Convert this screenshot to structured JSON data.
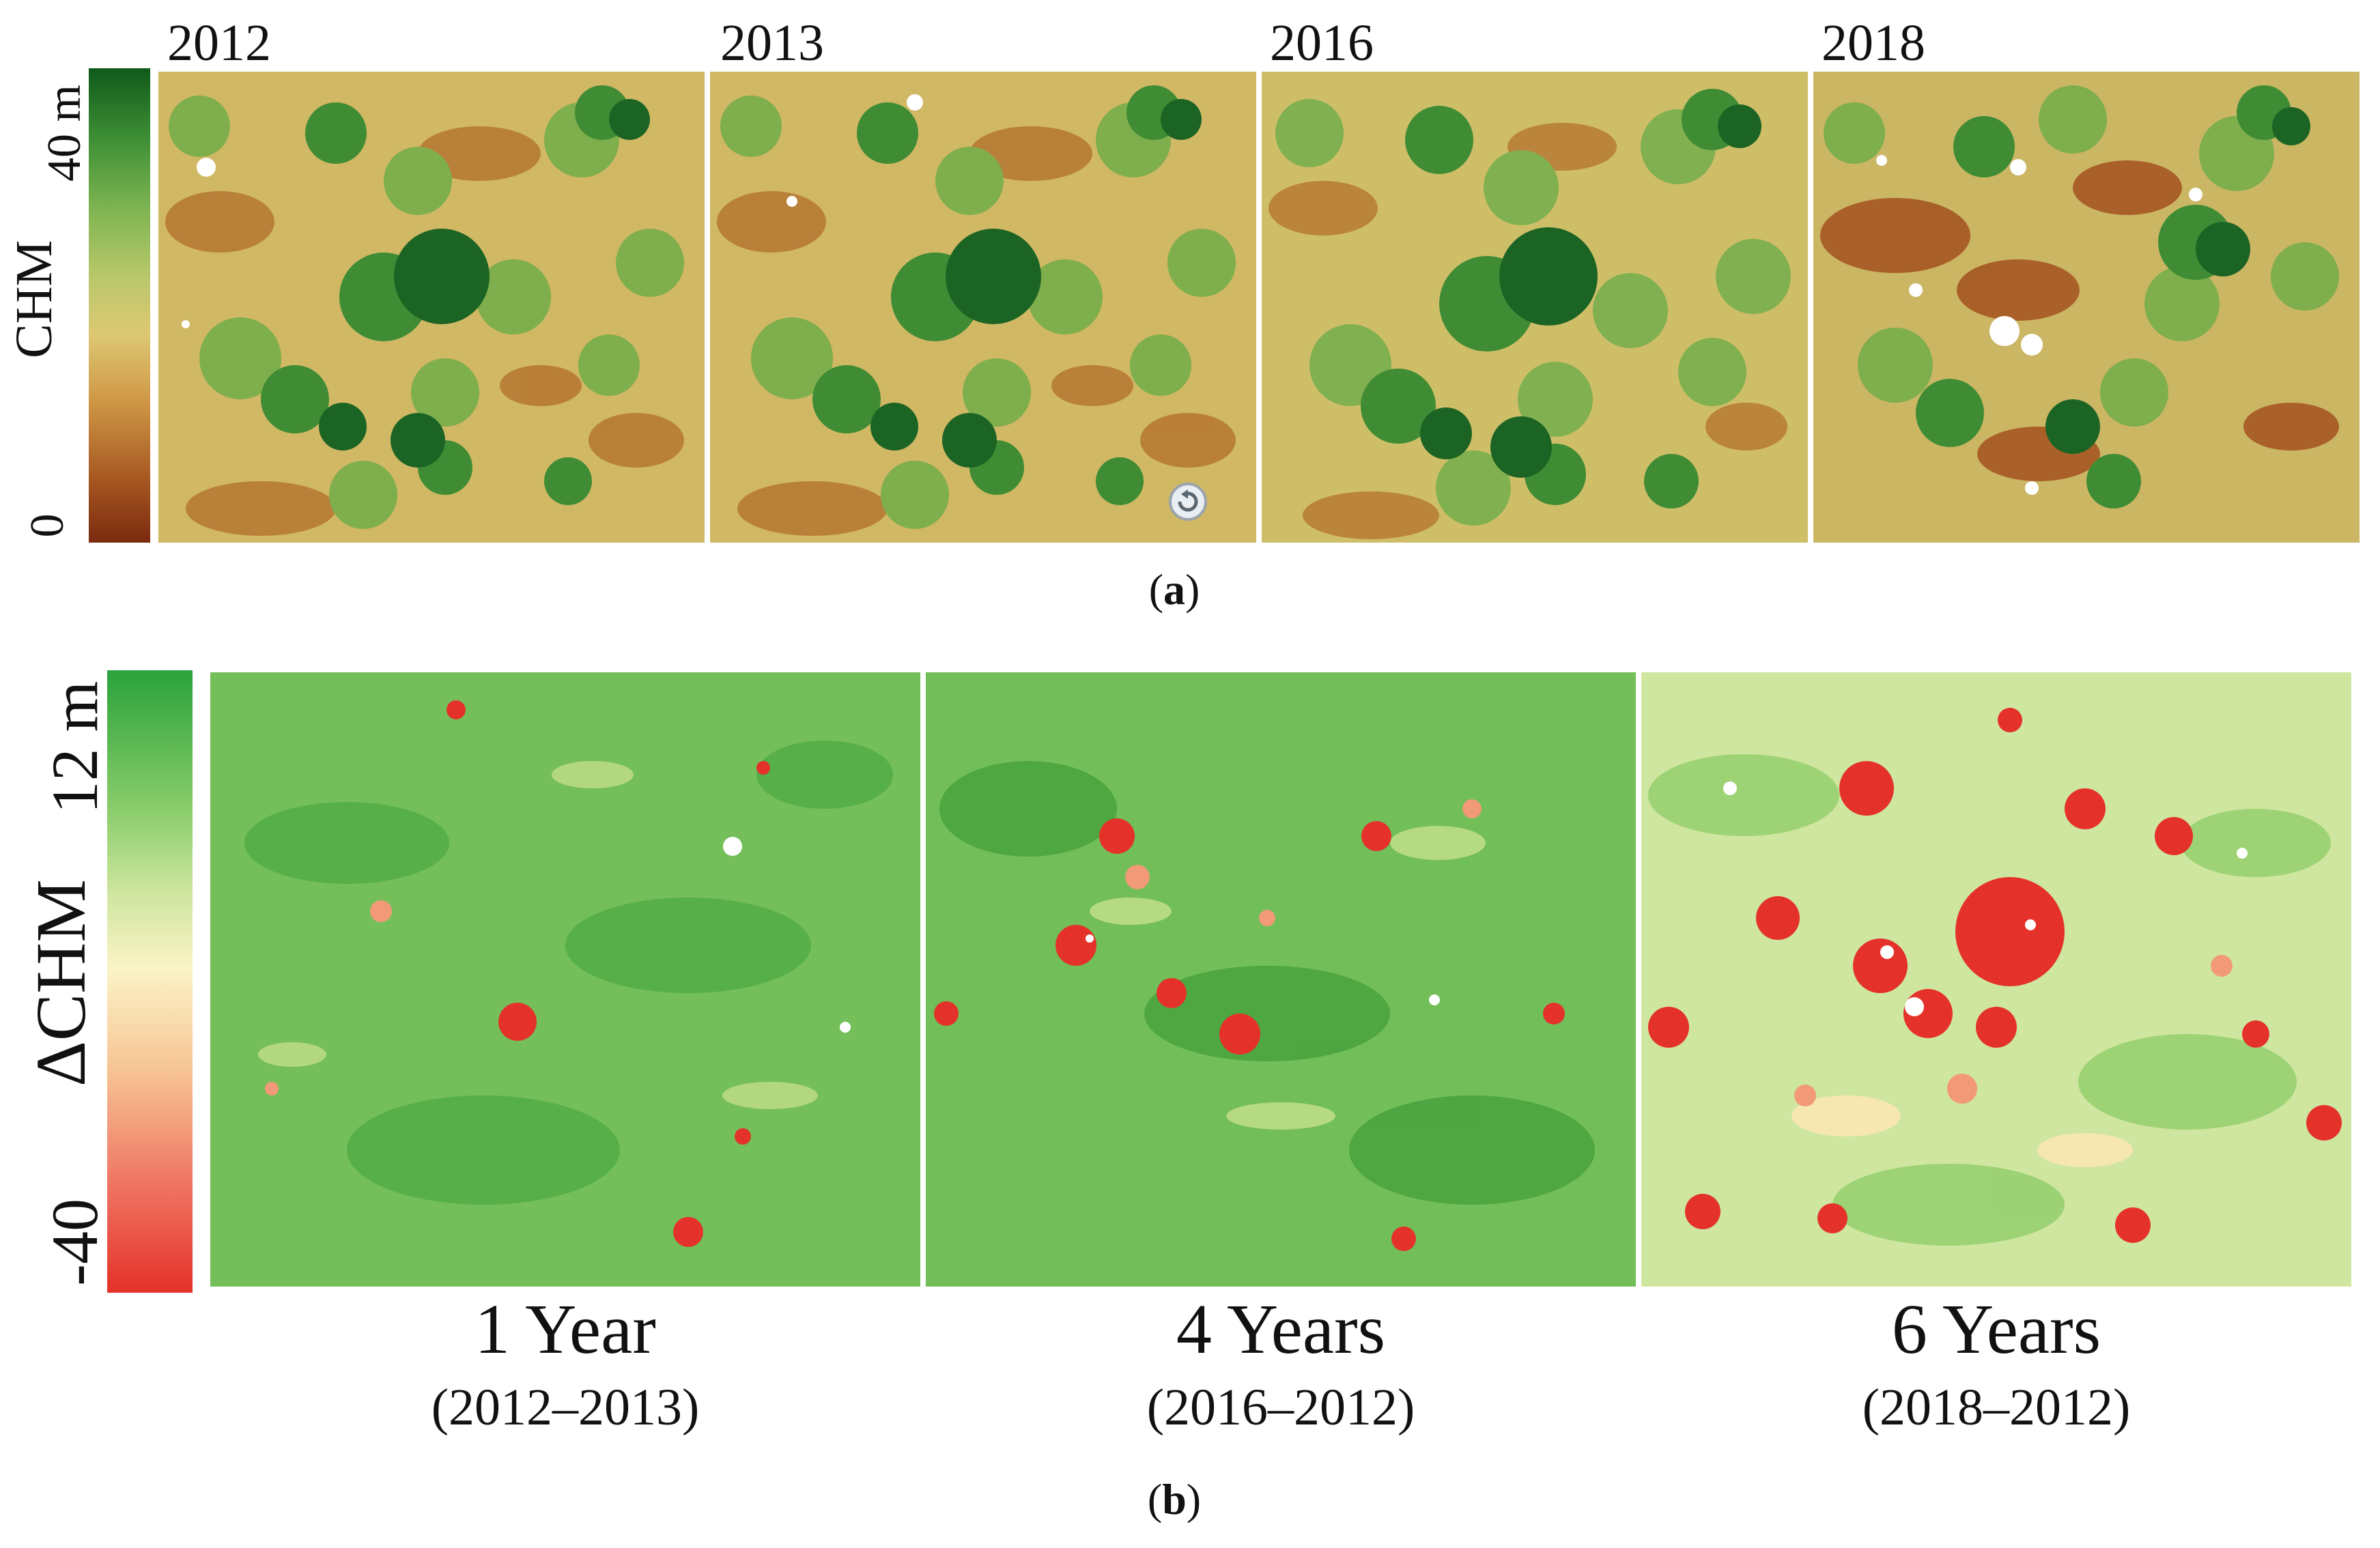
{
  "panel_a": {
    "label": "a",
    "colorbar": {
      "title": "CHM",
      "max_label": "40 m",
      "min_label": "0"
    },
    "years": [
      "2012",
      "2013",
      "2016",
      "2018"
    ]
  },
  "panel_b": {
    "label": "b",
    "colorbar": {
      "title": "ΔCHM",
      "max_label": "12 m",
      "min_label": "-40"
    },
    "intervals": [
      {
        "title": "1 Year",
        "range": "(2012–2013)"
      },
      {
        "title": "4 Years",
        "range": "(2016–2012)"
      },
      {
        "title": "6 Years",
        "range": "(2018–2012)"
      }
    ]
  },
  "colors": {
    "chm_low": "#7a2a0e",
    "chm_mid": "#ddc874",
    "chm_high": "#0f5a1a",
    "dchm_loss": "#e4322a",
    "dchm_zero": "#fbf3c6",
    "dchm_gain": "#2aa23b"
  }
}
